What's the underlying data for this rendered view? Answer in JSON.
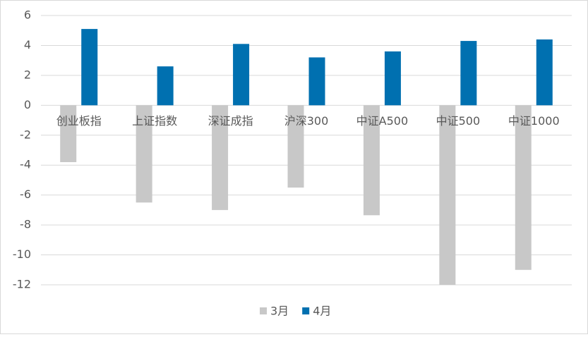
{
  "chart_data": {
    "type": "bar",
    "categories": [
      "创业板指",
      "上证指数",
      "深证成指",
      "沪深300",
      "中证A500",
      "中证500",
      "中证1000"
    ],
    "series": [
      {
        "name": "3月",
        "color": "#c8c8c8",
        "values": [
          -3.8,
          -6.5,
          -7.0,
          -5.5,
          -7.35,
          -12.0,
          -11.0
        ]
      },
      {
        "name": "4月",
        "color": "#0070b0",
        "values": [
          5.1,
          2.6,
          4.1,
          3.2,
          3.6,
          4.3,
          4.4
        ]
      }
    ],
    "ylim": [
      -12,
      6
    ],
    "yticks": [
      -12,
      -10,
      -8,
      -6,
      -4,
      -2,
      0,
      2,
      4,
      6
    ],
    "grid": true,
    "legend": "bottom"
  }
}
